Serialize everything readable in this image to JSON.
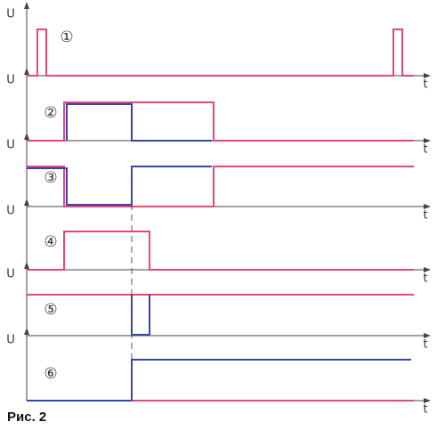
{
  "panels": [
    {
      "y_label": "U",
      "x_label": "t",
      "marker": "①"
    },
    {
      "y_label": "U",
      "x_label": "t",
      "marker": "②"
    },
    {
      "y_label": "U",
      "x_label": "t",
      "marker": "③"
    },
    {
      "y_label": "U",
      "x_label": "t",
      "marker": "④"
    },
    {
      "y_label": "U",
      "x_label": "t",
      "marker": "⑤"
    },
    {
      "y_label": "U",
      "x_label": "t",
      "marker": "⑥"
    }
  ],
  "caption": "Рис. 2"
}
